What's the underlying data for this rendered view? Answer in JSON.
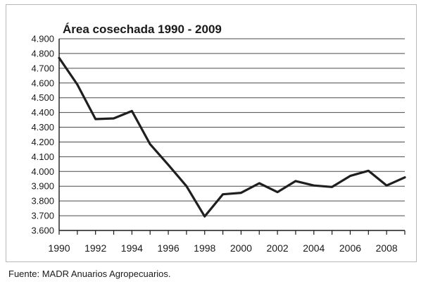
{
  "chart_data": {
    "type": "line",
    "title": "Área cosechada 1990 - 2009",
    "xlabel": "",
    "ylabel": "",
    "x": [
      1990,
      1991,
      1992,
      1993,
      1994,
      1995,
      1996,
      1997,
      1998,
      1999,
      2000,
      2001,
      2002,
      2003,
      2004,
      2005,
      2006,
      2007,
      2008,
      2009
    ],
    "series": [
      {
        "values": [
          4770,
          4590,
          4355,
          4360,
          4410,
          4185,
          4045,
          3900,
          3695,
          3845,
          3855,
          3920,
          3860,
          3935,
          3905,
          3895,
          3970,
          4005,
          3905,
          3960
        ],
        "color": "#1f1f1f"
      }
    ],
    "ylim": [
      3600,
      4900
    ],
    "yticks": [
      3600,
      3700,
      3800,
      3900,
      4000,
      4100,
      4200,
      4300,
      4400,
      4500,
      4600,
      4700,
      4800,
      4900
    ],
    "ytick_labels": [
      "3.600",
      "3.700",
      "3.800",
      "3.900",
      "4.000",
      "4.100",
      "4.200",
      "4.300",
      "4.400",
      "4.500",
      "4.600",
      "4.700",
      "4.800",
      "4.900"
    ],
    "xticks_labeled": [
      1990,
      1992,
      1994,
      1996,
      1998,
      2000,
      2002,
      2004,
      2006,
      2008
    ],
    "xtick_labels": [
      "1990",
      "1992",
      "1994",
      "1996",
      "1998",
      "2000",
      "2002",
      "2004",
      "2006",
      "2008"
    ],
    "grid": "horizontal",
    "legend": "none"
  },
  "footer": {
    "source": "Fuente: MADR Anuarios Agropecuarios."
  }
}
